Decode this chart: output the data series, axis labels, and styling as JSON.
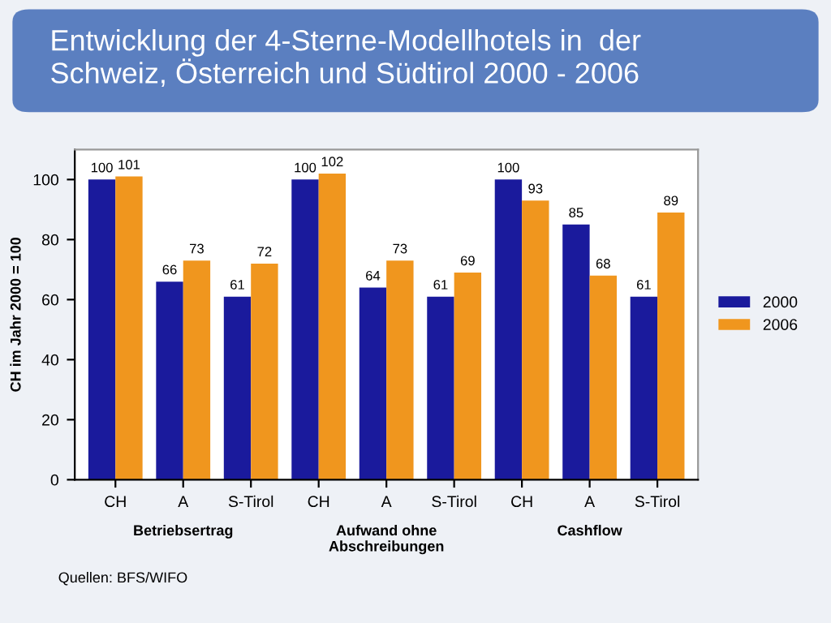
{
  "chart_data": {
    "type": "bar",
    "title": "Entwicklung der 4-Sterne-Modellhotels in  der\nSchweiz, Österreich und Südtirol 2000 - 2006",
    "ylabel": "CH im Jahr 2000 = 100",
    "categories": [
      "CH",
      "A",
      "S-Tirol",
      "CH",
      "A",
      "S-Tirol",
      "CH",
      "A",
      "S-Tirol"
    ],
    "series": [
      {
        "name": "2000",
        "color": "#1a1a9c",
        "values": [
          100,
          66,
          61,
          100,
          64,
          61,
          100,
          85,
          61
        ]
      },
      {
        "name": "2006",
        "color": "#f0961e",
        "values": [
          101,
          73,
          72,
          102,
          73,
          69,
          93,
          68,
          89
        ]
      }
    ],
    "ylim": [
      0,
      110
    ],
    "yticks": [
      0,
      20,
      40,
      60,
      80,
      100
    ],
    "grid": false,
    "legend": "right",
    "data_labels": true,
    "annotations": [
      "Betriebsertrag",
      "Aufwand ohne\nAbschreibungen",
      "Cashflow",
      "Quellen: BFS/WIFO"
    ]
  }
}
